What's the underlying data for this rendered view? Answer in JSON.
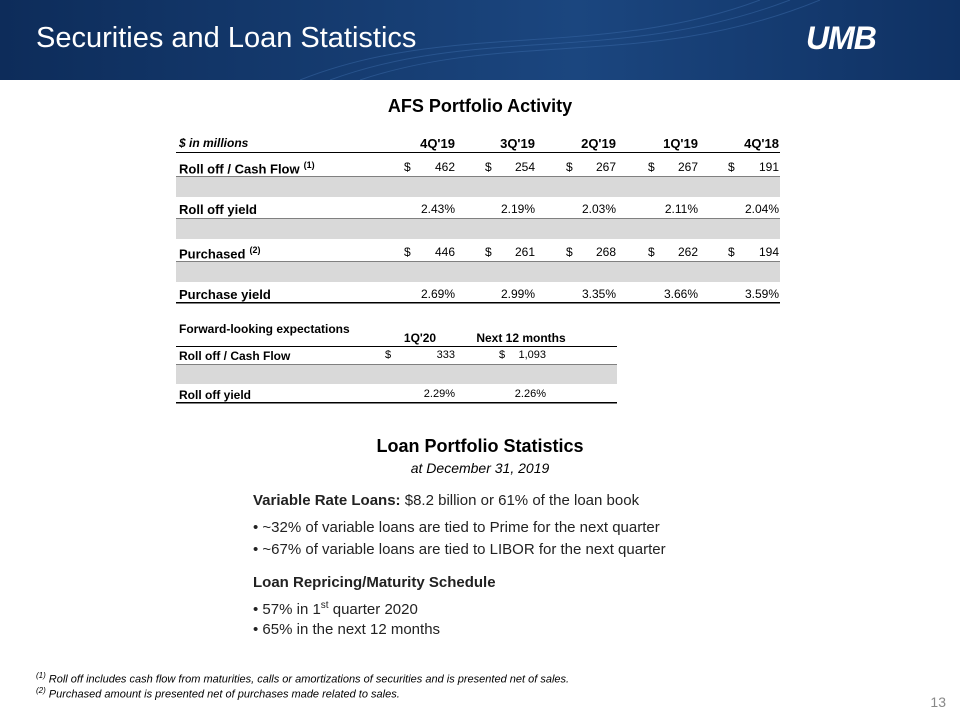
{
  "header": {
    "title": "Securities and Loan Statistics",
    "logo": "UMB"
  },
  "afs": {
    "title": "AFS Portfolio Activity",
    "unit": "$ in millions",
    "columns": [
      "4Q'19",
      "3Q'19",
      "2Q'19",
      "1Q'19",
      "4Q'18"
    ],
    "rows": [
      {
        "label": "Roll off / Cash Flow",
        "note": "(1)",
        "currency": "$",
        "cells": [
          "462",
          "254",
          "267",
          "267",
          "191"
        ]
      },
      {
        "label": "Roll off yield",
        "cells": [
          "2.43%",
          "2.19%",
          "2.03%",
          "2.11%",
          "2.04%"
        ]
      },
      {
        "label": "Purchased",
        "note": "(2)",
        "currency": "$",
        "cells": [
          "446",
          "261",
          "268",
          "262",
          "194"
        ]
      },
      {
        "label": "Purchase yield",
        "cells": [
          "2.69%",
          "2.99%",
          "3.35%",
          "3.66%",
          "3.59%"
        ]
      }
    ]
  },
  "forward": {
    "title": "Forward-looking expectations",
    "columns": [
      "1Q'20",
      "Next 12 months"
    ],
    "rows": [
      {
        "label": "Roll off / Cash Flow",
        "currency": "$",
        "cells": [
          "333",
          "1,093"
        ]
      },
      {
        "label": "Roll off yield",
        "cells": [
          "2.29%",
          "2.26%"
        ]
      }
    ]
  },
  "loan": {
    "title": "Loan Portfolio Statistics",
    "subtitle": "at December 31, 2019",
    "variable_label": "Variable Rate Loans:",
    "variable_text": "$8.2 billion or 61% of the loan book",
    "variable_bullets": [
      "~32% of variable loans are tied to Prime for the next quarter",
      "~67% of variable loans are tied to LIBOR for the next quarter"
    ],
    "schedule_title": "Loan Repricing/Maturity Schedule",
    "schedule_bullets": [
      {
        "text": "57% in 1",
        "sup": "st",
        "rest": " quarter 2020"
      },
      {
        "text": "65% in the next 12 months"
      }
    ]
  },
  "footnotes": [
    {
      "mark": "(1)",
      "text": "Roll off includes cash flow from maturities, calls or amortizations of securities and is presented net of sales."
    },
    {
      "mark": "(2)",
      "text": "Purchased amount is presented net of purchases made related to sales."
    }
  ],
  "page_number": "13"
}
